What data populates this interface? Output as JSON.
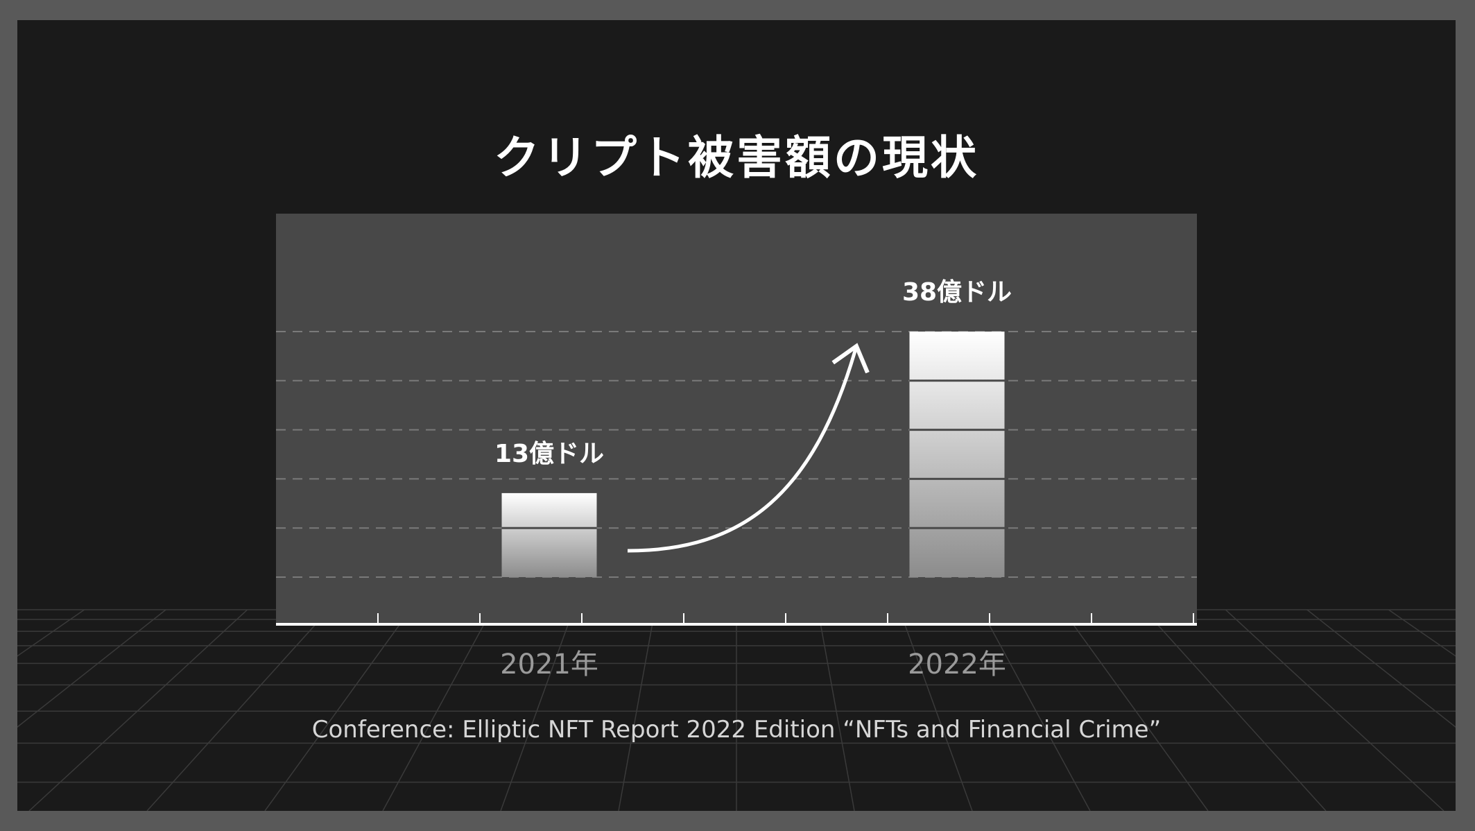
{
  "slide": {
    "title": "クリプト被害額の現状",
    "source": "Conference: Elliptic NFT Report 2022 Edition “NFTs and Financial Crime”"
  },
  "colors": {
    "background": "#1a1a1a",
    "frame": "#595959",
    "plot_area": "#484848",
    "bar_top": "#ffffff",
    "bar_bottom": "#8c8c8c",
    "axis": "#ffffff",
    "tick_label": "#9a9a9a"
  },
  "chart_data": {
    "type": "bar",
    "title": "",
    "xlabel": "",
    "ylabel": "",
    "categories": [
      "2021年",
      "2022年"
    ],
    "values": [
      13,
      38
    ],
    "data_labels": [
      "13億ドル",
      "38億ドル"
    ],
    "unit": "億ドル",
    "ylim": [
      0,
      43
    ],
    "grid": true,
    "grid_style": "dashed",
    "annotation": "curved-growth-arrow"
  }
}
